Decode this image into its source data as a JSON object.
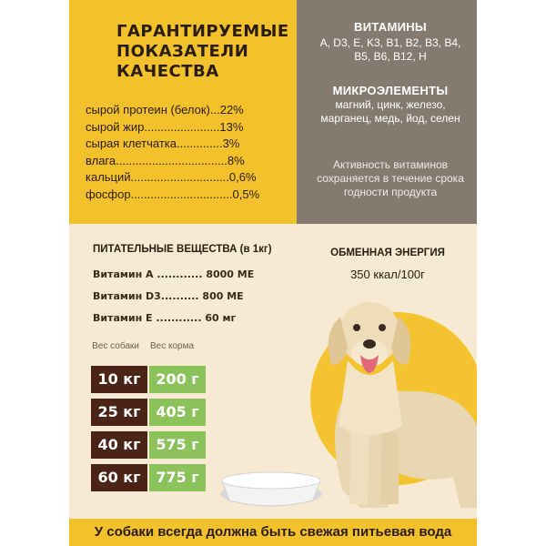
{
  "guaranteed": {
    "title_lines": [
      "ГАРАНТИРУЕМЫЕ",
      "ПОКАЗАТЕЛИ",
      "КАЧЕСТВА"
    ],
    "items": [
      "сырой протеин (белок)...22%",
      "сырой жир.......................13%",
      "сырая клетчатка..............3%",
      "влага..................................8%",
      "кальций..............................0,6%",
      "фосфор...............................0,5%"
    ]
  },
  "vitamins": {
    "title": "ВИТАМИНЫ",
    "text": "A, D3, E, K3, B1, B2, B3, B4, B5, B6, B12, H"
  },
  "microelements": {
    "title": "МИКРОЭЛЕМЕНТЫ",
    "text": "магний, цинк, железо, марганец, медь, йод, селен"
  },
  "activity_note": "Активность витаминов сохраняется в течение срока годности продукта",
  "nutrients": {
    "title": "ПИТАТЕЛЬНЫЕ ВЕЩЕСТВА (в 1кг)",
    "items": [
      "Витамин А ............ 8000 МЕ",
      "Витамин D3.......... 800 МЕ",
      "Витамин Е ............ 60 мг"
    ]
  },
  "energy": {
    "title": "ОБМЕННАЯ ЭНЕРГИЯ",
    "value": "350 ккал/100г"
  },
  "feeding": {
    "dog_weight_header": "Вес собаки",
    "food_weight_header": "Вес корма",
    "rows": [
      {
        "dog": "10 кг",
        "food": "200 г"
      },
      {
        "dog": "25 кг",
        "food": "405 г"
      },
      {
        "dog": "40 кг",
        "food": "575 г"
      },
      {
        "dog": "60 кг",
        "food": "775 г"
      }
    ]
  },
  "footer": "У собаки всегда должна быть свежая питьевая вода",
  "colors": {
    "yellow": "#f2c12c",
    "taupe": "#847a70",
    "cream": "#f7e9d2",
    "dark_brown": "#4a2416",
    "green": "#8bc25a"
  },
  "illustration": "labrador-dog-with-bowl"
}
